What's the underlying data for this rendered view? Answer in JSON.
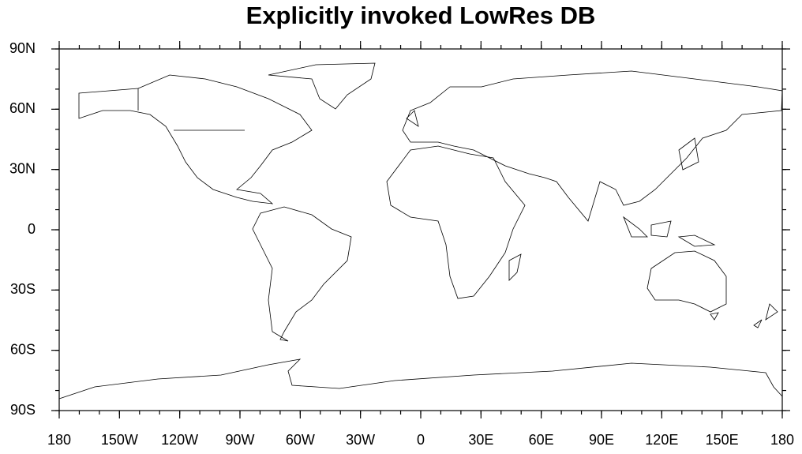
{
  "title": "Explicitly invoked LowRes DB",
  "x_ticks": [
    "180",
    "150W",
    "120W",
    "90W",
    "60W",
    "30W",
    "0",
    "30E",
    "60E",
    "90E",
    "120E",
    "150E",
    "180"
  ],
  "y_ticks": [
    "90N",
    "60N",
    "30N",
    "0",
    "30S",
    "60S",
    "90S"
  ]
}
